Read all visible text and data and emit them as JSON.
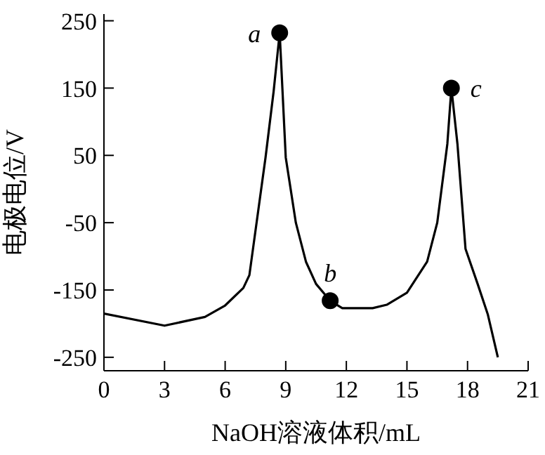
{
  "chart_data": {
    "type": "line",
    "xlabel": "NaOH溶液体积/mL",
    "ylabel": "电极电位/V",
    "x": [
      0,
      3,
      5,
      6,
      6.9,
      7.2,
      8,
      8.4,
      8.7,
      9,
      9.5,
      10,
      10.5,
      11.2,
      11.8,
      13.3,
      14,
      15,
      16,
      16.5,
      17,
      17.2,
      17.5,
      17.9,
      18.5,
      19,
      19.5
    ],
    "series": [
      {
        "color": "#000000",
        "values": [
          -185,
          -203,
          -190,
          -173,
          -147,
          -128,
          47,
          145,
          232,
          47,
          -50,
          -108,
          -141,
          -166,
          -177,
          -177,
          -172,
          -154,
          -108,
          -50,
          67,
          150,
          67,
          -89,
          -141,
          -186,
          -250
        ]
      }
    ],
    "xlim": [
      0,
      21
    ],
    "xticks": [
      0,
      3,
      6,
      9,
      12,
      15,
      18,
      21
    ],
    "ylim": [
      -270,
      260
    ],
    "yticks": [
      -250,
      -150,
      -50,
      50,
      150,
      250
    ],
    "grid": false,
    "legend": false,
    "marker": "none",
    "line_style": "solid",
    "annotations": [
      {
        "text": "a",
        "x": 8.7,
        "y": 232
      },
      {
        "text": "b",
        "x": 11.2,
        "y": -166
      },
      {
        "text": "c",
        "x": 17.2,
        "y": 150
      }
    ]
  }
}
